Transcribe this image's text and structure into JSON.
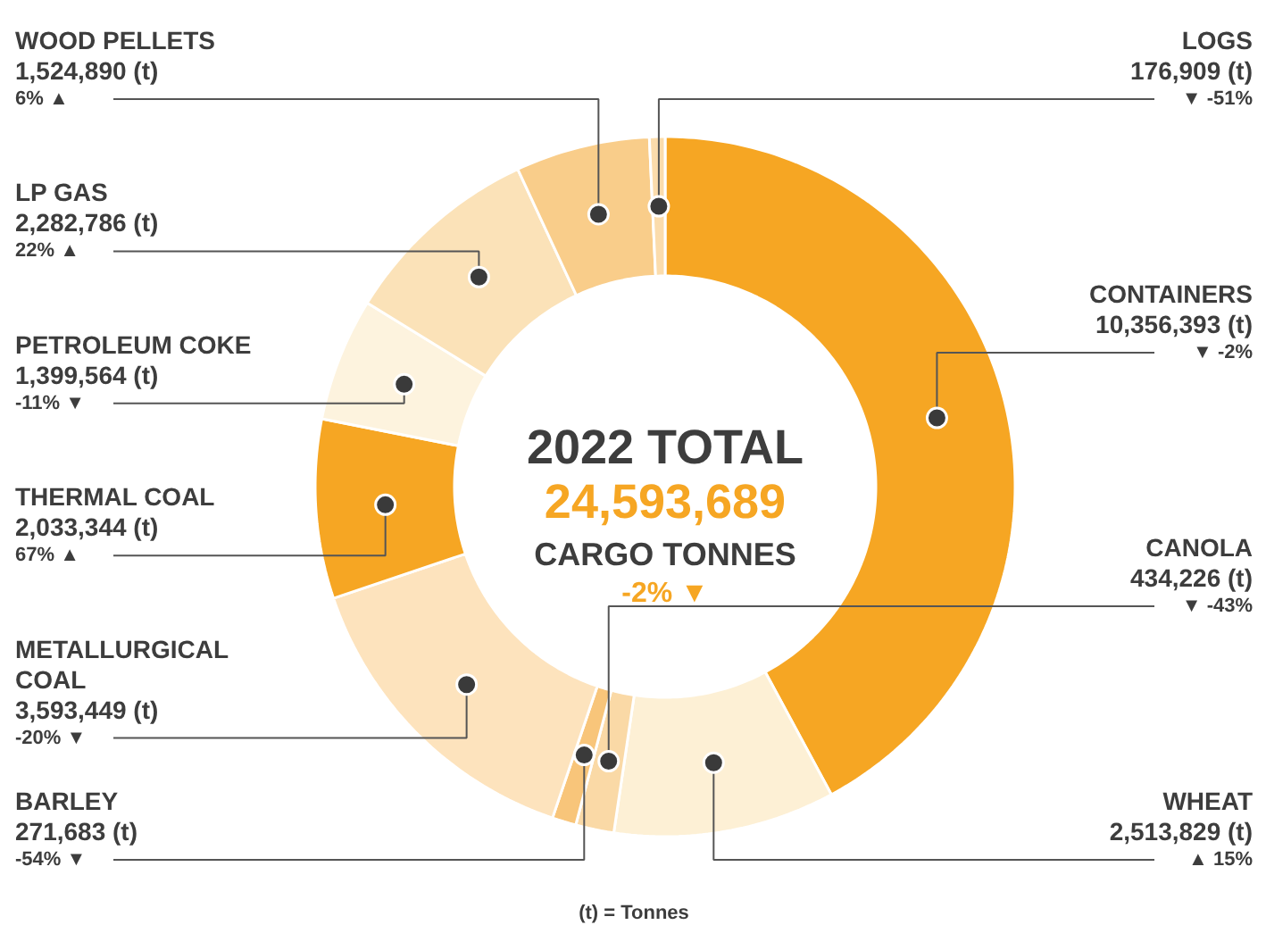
{
  "chart_data": {
    "type": "donut",
    "title": "2022 TOTAL",
    "subtitle": "24,593,689",
    "categories": [
      "CONTAINERS",
      "WHEAT",
      "CANOLA",
      "BARLEY",
      "METALLURGICAL COAL",
      "THERMAL COAL",
      "PETROLEUM COKE",
      "LP GAS",
      "WOOD PELLETS",
      "LOGS"
    ],
    "values": [
      10356393,
      2513829,
      434226,
      271683,
      3593449,
      2033344,
      1399564,
      2282786,
      1524890,
      176909
    ],
    "colors": [
      "#f6a623",
      "#fdf0d5",
      "#fad9a6",
      "#f8c57a",
      "#fde3bd",
      "#f6a623",
      "#fdf3de",
      "#fbe2b8",
      "#f9cd8a",
      "#fbdcac"
    ],
    "value_labels": [
      "10,356,393 (t)",
      "2,513,829 (t)",
      "434,226 (t)",
      "271,683 (t)",
      "3,593,449 (t)",
      "2,033,344 (t)",
      "1,399,564 (t)",
      "2,282,786 (t)",
      "1,524,890 (t)",
      "176,909 (t)"
    ],
    "annotations": [
      "CARGO TONNES",
      "-2% ▼",
      "(t) = Tonnes",
      {
        "text": "▼ -2%",
        "x": "CONTAINERS"
      },
      {
        "text": "▲ 15%",
        "x": "WHEAT"
      },
      {
        "text": "▼ -43%",
        "x": "CANOLA"
      },
      {
        "text": "-54% ▼",
        "x": "BARLEY"
      },
      {
        "text": "-20% ▼",
        "x": "METALLURGICAL COAL"
      },
      {
        "text": "67% ▲",
        "x": "THERMAL COAL"
      },
      {
        "text": "-11% ▼",
        "x": "PETROLEUM COKE"
      },
      {
        "text": "22% ▲",
        "x": "LP GAS"
      },
      {
        "text": "6% ▲",
        "x": "WOOD PELLETS"
      },
      {
        "text": "▼ -51%",
        "x": "LOGS"
      }
    ]
  }
}
